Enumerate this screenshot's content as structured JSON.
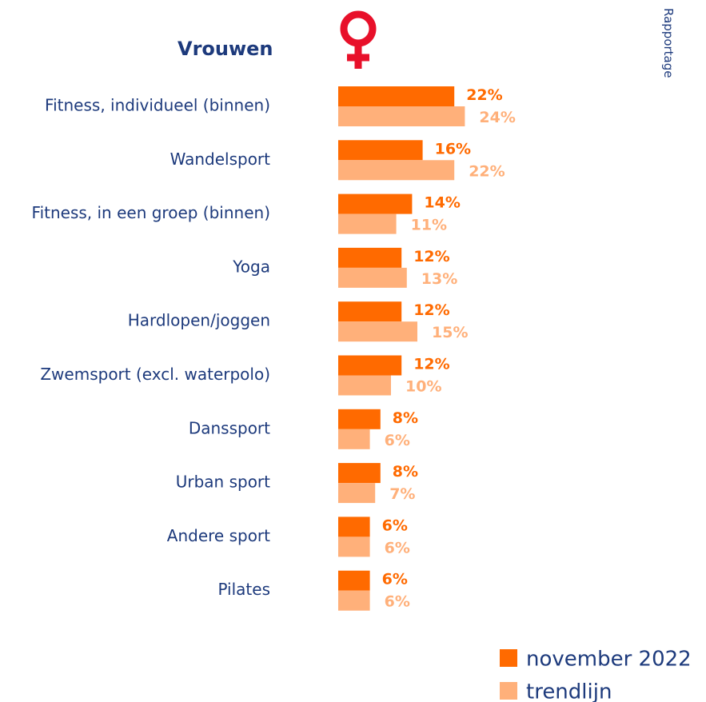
{
  "chart_data": {
    "type": "bar",
    "orientation": "horizontal",
    "title": "Vrouwen",
    "side_label": "Rapportage",
    "categories": [
      "Fitness, individueel (binnen)",
      "Wandelsport",
      "Fitness, in een groep (binnen)",
      "Yoga",
      "Hardlopen/joggen",
      "Zwemsport (excl. waterpolo)",
      "Danssport",
      "Urban sport",
      "Andere sport",
      "Pilates"
    ],
    "series": [
      {
        "name": "november 2022",
        "color": "#ff6a00",
        "values": [
          22,
          16,
          14,
          12,
          12,
          12,
          8,
          8,
          6,
          6
        ],
        "value_labels": [
          "22%",
          "16%",
          "14%",
          "12%",
          "12%",
          "12%",
          "8%",
          "8%",
          "6%",
          "6%"
        ]
      },
      {
        "name": "trendlijn",
        "color": "#ffb07a",
        "values": [
          24,
          22,
          11,
          13,
          15,
          10,
          6,
          7,
          6,
          6
        ],
        "value_labels": [
          "24%",
          "22%",
          "11%",
          "13%",
          "15%",
          "10%",
          "6%",
          "7%",
          "6%",
          "6%"
        ]
      }
    ],
    "legend": "bottom-right"
  }
}
